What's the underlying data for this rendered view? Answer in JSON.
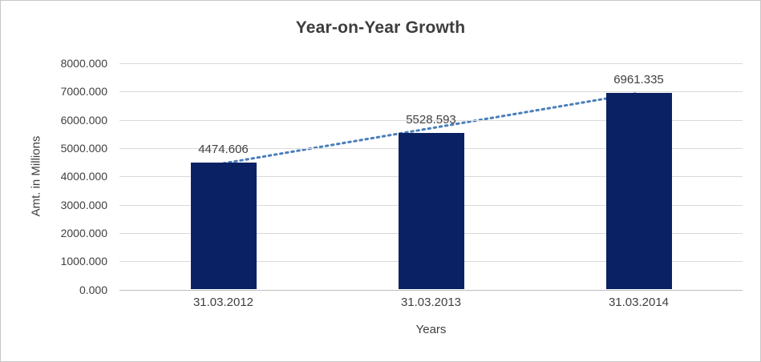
{
  "chart_data": {
    "type": "bar",
    "title": "Year-on-Year Growth",
    "xlabel": "Years",
    "ylabel": "Amt. in Millions",
    "categories": [
      "31.03.2012",
      "31.03.2013",
      "31.03.2014"
    ],
    "values": [
      4474.606,
      5528.593,
      6961.335
    ],
    "data_labels": [
      "4474.606",
      "5528.593",
      "6961.335"
    ],
    "ylim": [
      0,
      8000
    ],
    "ytick_labels": [
      "0.000",
      "1000.000",
      "2000.000",
      "3000.000",
      "4000.000",
      "5000.000",
      "6000.000",
      "7000.000",
      "8000.000"
    ],
    "grid": true,
    "legend": "none",
    "trendline": {
      "style": "dotted",
      "type": "linear"
    },
    "colors": {
      "bar": "#0A2264",
      "trend": "#4A7EBB",
      "gridline": "#D9D9D9",
      "axis_line": "#BFBFBF",
      "text": "#404040",
      "title": "#3D3D3D",
      "frame_border": "#C8C8C8"
    }
  }
}
